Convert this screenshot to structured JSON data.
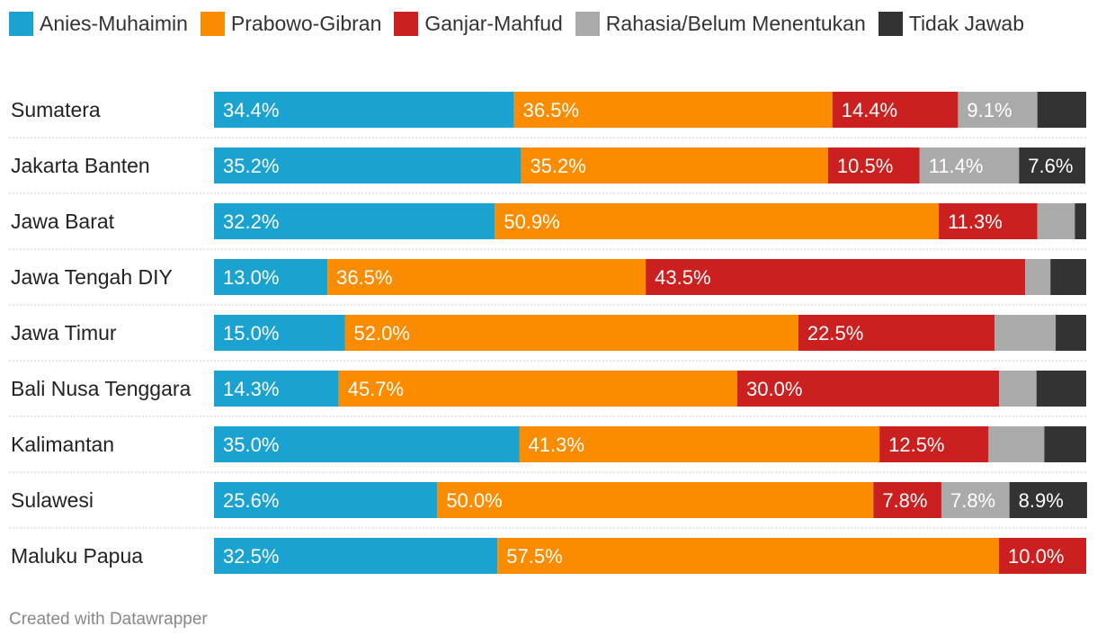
{
  "legend": [
    {
      "label": "Anies-Muhaimin",
      "color": "#1aa3d1"
    },
    {
      "label": "Prabowo-Gibran",
      "color": "#fb8c00"
    },
    {
      "label": "Ganjar-Mahfud",
      "color": "#cc1f1f"
    },
    {
      "label": "Rahasia/Belum Menentukan",
      "color": "#aaaaaa"
    },
    {
      "label": "Tidak Jawab",
      "color": "#333333"
    }
  ],
  "chart_data": {
    "type": "bar",
    "orientation": "horizontal",
    "stacked": true,
    "xlim": [
      0,
      100
    ],
    "categories": [
      "Sumatera",
      "Jakarta Banten",
      "Jawa Barat",
      "Jawa Tengah DIY",
      "Jawa Timur",
      "Bali Nusa Tenggara",
      "Kalimantan",
      "Sulawesi",
      "Maluku Papua"
    ],
    "series": [
      {
        "name": "Anies-Muhaimin",
        "color": "#1aa3d1",
        "values": [
          34.4,
          35.2,
          32.2,
          13.0,
          15.0,
          14.3,
          35.0,
          25.6,
          32.5
        ],
        "labels": [
          "34.4%",
          "35.2%",
          "32.2%",
          "13.0%",
          "15.0%",
          "14.3%",
          "35.0%",
          "25.6%",
          "32.5%"
        ]
      },
      {
        "name": "Prabowo-Gibran",
        "color": "#fb8c00",
        "values": [
          36.5,
          35.2,
          50.9,
          36.5,
          52.0,
          45.7,
          41.3,
          50.0,
          57.5
        ],
        "labels": [
          "36.5%",
          "35.2%",
          "50.9%",
          "36.5%",
          "52.0%",
          "45.7%",
          "41.3%",
          "50.0%",
          "57.5%"
        ]
      },
      {
        "name": "Ganjar-Mahfud",
        "color": "#cc1f1f",
        "values": [
          14.4,
          10.5,
          11.3,
          43.5,
          22.5,
          30.0,
          12.5,
          7.8,
          10.0
        ],
        "labels": [
          "14.4%",
          "10.5%",
          "11.3%",
          "43.5%",
          "22.5%",
          "30.0%",
          "12.5%",
          "7.8%",
          "10.0%"
        ]
      },
      {
        "name": "Rahasia/Belum Menentukan",
        "color": "#aaaaaa",
        "values": [
          9.1,
          11.4,
          4.3,
          2.9,
          7.0,
          4.3,
          6.4,
          7.8,
          0
        ],
        "labels": [
          "9.1%",
          "11.4%",
          "",
          "",
          "",
          "",
          "",
          "7.8%",
          ""
        ]
      },
      {
        "name": "Tidak Jawab",
        "color": "#333333",
        "values": [
          5.6,
          7.6,
          1.3,
          4.1,
          3.5,
          5.7,
          4.8,
          8.9,
          0
        ],
        "labels": [
          "",
          "7.6%",
          "",
          "",
          "",
          "",
          "",
          "8.9%",
          ""
        ]
      }
    ]
  },
  "credit": "Created with Datawrapper"
}
